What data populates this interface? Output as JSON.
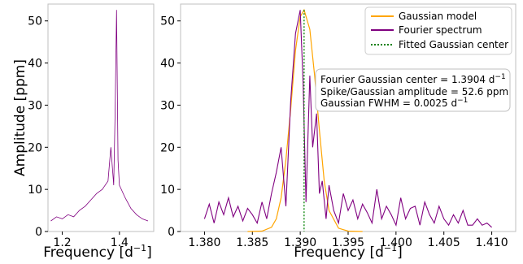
{
  "chart_data": [
    {
      "type": "line",
      "panel": "left",
      "xlabel": "Frequency [d$^{-1}$]",
      "xlabel_text": "Frequency [d",
      "xlabel_sup": "−1",
      "xlabel_close": "]",
      "ylabel": "Amplitude [ppm]",
      "xlim": [
        1.15,
        1.52
      ],
      "ylim": [
        0,
        54
      ],
      "xticks": [
        1.2,
        1.4
      ],
      "xtick_labels": [
        "1.2",
        "1.4"
      ],
      "yticks": [
        0,
        10,
        20,
        30,
        40,
        50
      ],
      "ytick_labels": [
        "0",
        "10",
        "20",
        "30",
        "40",
        "50"
      ],
      "series": [
        {
          "color": "#800080",
          "x": [
            1.16,
            1.18,
            1.2,
            1.22,
            1.24,
            1.26,
            1.28,
            1.3,
            1.32,
            1.34,
            1.36,
            1.37,
            1.38,
            1.385,
            1.39,
            1.395,
            1.4,
            1.42,
            1.44,
            1.46,
            1.48,
            1.5
          ],
          "y": [
            2.5,
            3.5,
            3.0,
            4.0,
            3.5,
            5.0,
            6.0,
            7.5,
            9.0,
            10.0,
            12.0,
            20.0,
            11.0,
            29.0,
            52.6,
            17.0,
            11.0,
            8.0,
            5.5,
            4.0,
            3.0,
            2.5
          ]
        }
      ]
    },
    {
      "type": "line",
      "panel": "right",
      "xlabel": "Frequency [d$^{-1}$]",
      "xlabel_text": "Frequency [d",
      "xlabel_sup": "−1",
      "xlabel_close": "]",
      "xlim": [
        1.3775,
        1.4125
      ],
      "ylim": [
        0,
        54
      ],
      "xticks": [
        1.38,
        1.385,
        1.39,
        1.395,
        1.4,
        1.405,
        1.41
      ],
      "xtick_labels": [
        "1.380",
        "1.385",
        "1.390",
        "1.395",
        "1.400",
        "1.405",
        "1.410"
      ],
      "yticks": [
        0,
        10,
        20,
        30,
        40,
        50
      ],
      "ytick_labels": [
        "0",
        "10",
        "20",
        "30",
        "40",
        "50"
      ],
      "legend": {
        "position": "top-right",
        "entries": [
          {
            "label": "Gaussian model",
            "color": "#FFA500",
            "style": "solid"
          },
          {
            "label": "Fourier spectrum",
            "color": "#800080",
            "style": "solid"
          },
          {
            "label": "Fitted Gaussian center",
            "color": "#008000",
            "style": "dotted"
          }
        ]
      },
      "annotation": {
        "line1": "Fourier Gaussian center = 1.3904 d",
        "line1_sup": "−1",
        "line2": "Spike/Gaussian amplitude = 52.6 ppm",
        "line3": "Gaussian FWHM = 0.0025 d",
        "line3_sup": "−1"
      },
      "gaussian": {
        "center": 1.3904,
        "amplitude": 52.6,
        "fwhm": 0.0025
      },
      "fitted_center": 1.3904,
      "series": [
        {
          "name": "Fourier spectrum",
          "color": "#800080",
          "x": [
            1.38,
            1.3805,
            1.381,
            1.3815,
            1.382,
            1.3825,
            1.383,
            1.3835,
            1.384,
            1.3845,
            1.385,
            1.3855,
            1.386,
            1.3865,
            1.387,
            1.3875,
            1.388,
            1.3885,
            1.389,
            1.3895,
            1.39,
            1.3903,
            1.3906,
            1.391,
            1.3913,
            1.3917,
            1.392,
            1.3923,
            1.3927,
            1.393,
            1.3935,
            1.394,
            1.3945,
            1.395,
            1.3955,
            1.396,
            1.3965,
            1.397,
            1.3975,
            1.398,
            1.3985,
            1.399,
            1.3995,
            1.4,
            1.4005,
            1.401,
            1.4015,
            1.402,
            1.4025,
            1.403,
            1.4035,
            1.404,
            1.4045,
            1.405,
            1.4055,
            1.406,
            1.4065,
            1.407,
            1.4075,
            1.408,
            1.4085,
            1.409,
            1.4095,
            1.41
          ],
          "y": [
            3.0,
            6.5,
            2.0,
            7.0,
            4.0,
            8.0,
            3.5,
            6.0,
            2.5,
            5.5,
            4.0,
            2.0,
            7.0,
            3.0,
            9.0,
            14.0,
            20.0,
            6.0,
            31.0,
            47.0,
            52.6,
            35.0,
            7.0,
            37.0,
            20.0,
            28.0,
            9.0,
            12.0,
            3.0,
            11.0,
            5.0,
            2.0,
            9.0,
            5.0,
            7.5,
            3.0,
            6.5,
            4.5,
            2.0,
            10.0,
            3.0,
            6.0,
            4.0,
            1.5,
            8.0,
            3.0,
            5.5,
            6.0,
            1.5,
            7.0,
            4.0,
            2.0,
            6.0,
            3.0,
            1.5,
            4.0,
            2.0,
            5.0,
            1.5,
            1.5,
            3.0,
            1.5,
            2.0,
            1.0
          ]
        },
        {
          "name": "Gaussian model",
          "color": "#FFA500",
          "x": [
            1.3845,
            1.386,
            1.387,
            1.3875,
            1.388,
            1.3885,
            1.389,
            1.3895,
            1.39,
            1.3904,
            1.391,
            1.3915,
            1.392,
            1.3925,
            1.393,
            1.394,
            1.395,
            1.3965
          ],
          "y": [
            0,
            0.1,
            1.0,
            3.0,
            8.0,
            17.0,
            29.0,
            43.0,
            51.0,
            52.6,
            48.0,
            37.0,
            24.0,
            12.0,
            5.0,
            0.8,
            0.1,
            0
          ]
        }
      ]
    }
  ]
}
